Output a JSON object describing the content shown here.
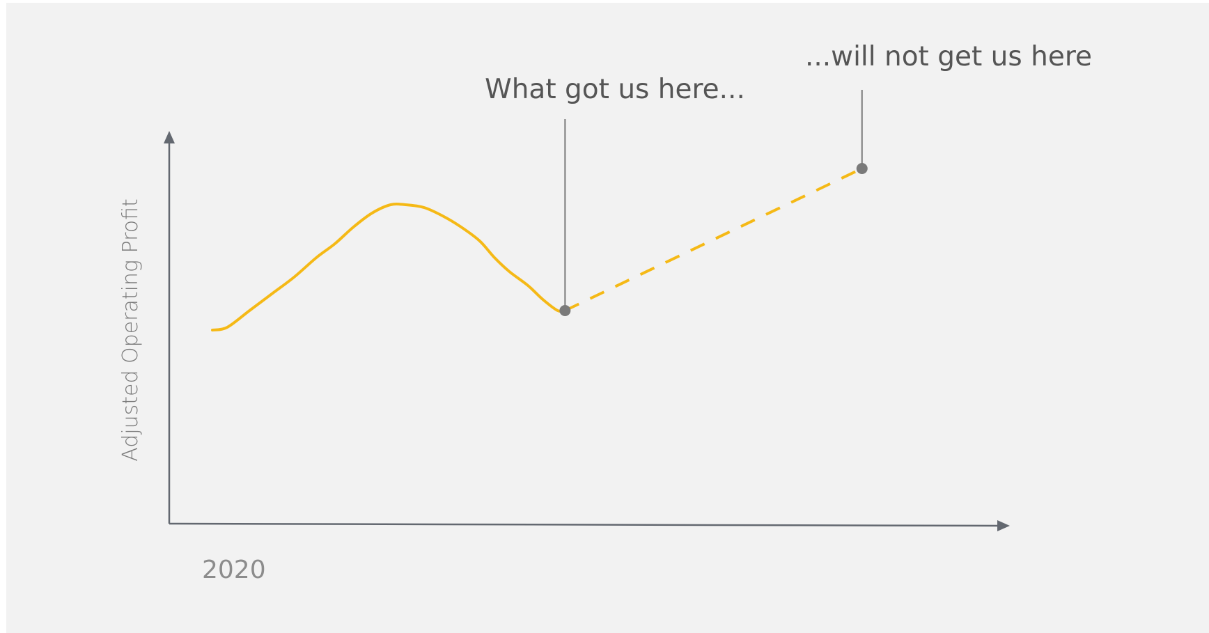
{
  "chart_data": {
    "type": "line",
    "title": "",
    "ylabel": "Adjusted Operating Profit",
    "xlabel": "",
    "x_tick_labels": [
      "2020"
    ],
    "grid": false,
    "legend": "none",
    "series": [
      {
        "style": "solid",
        "color": "#f5b916",
        "values": [
          [
            0.0,
            0.34
          ],
          [
            0.4,
            0.35
          ],
          [
            1.0,
            0.41
          ],
          [
            1.6,
            0.47
          ],
          [
            2.2,
            0.53
          ],
          [
            2.8,
            0.6
          ],
          [
            3.3,
            0.65
          ],
          [
            3.8,
            0.71
          ],
          [
            4.3,
            0.76
          ],
          [
            4.8,
            0.79
          ],
          [
            5.2,
            0.79
          ],
          [
            5.7,
            0.78
          ],
          [
            6.2,
            0.75
          ],
          [
            6.7,
            0.71
          ],
          [
            7.2,
            0.66
          ],
          [
            7.6,
            0.6
          ],
          [
            8.0,
            0.55
          ],
          [
            8.5,
            0.5
          ],
          [
            8.9,
            0.45
          ],
          [
            9.3,
            0.41
          ],
          [
            9.5,
            0.41
          ]
        ]
      },
      {
        "style": "dashed",
        "color": "#f5b916",
        "values": [
          [
            9.5,
            0.41
          ],
          [
            17.5,
            0.92
          ]
        ]
      }
    ],
    "annotations": [
      {
        "text": "What got us here...",
        "x": 9.5,
        "y": 0.41
      },
      {
        "text": "...will not get us here",
        "x": 17.5,
        "y": 0.92
      }
    ],
    "xlim": [
      0,
      20
    ],
    "ylim": [
      0,
      1
    ],
    "colors": {
      "background": "#f2f2f2",
      "axis": "#636870",
      "marker": "#7a7a7a",
      "line": "#f5b916"
    }
  }
}
